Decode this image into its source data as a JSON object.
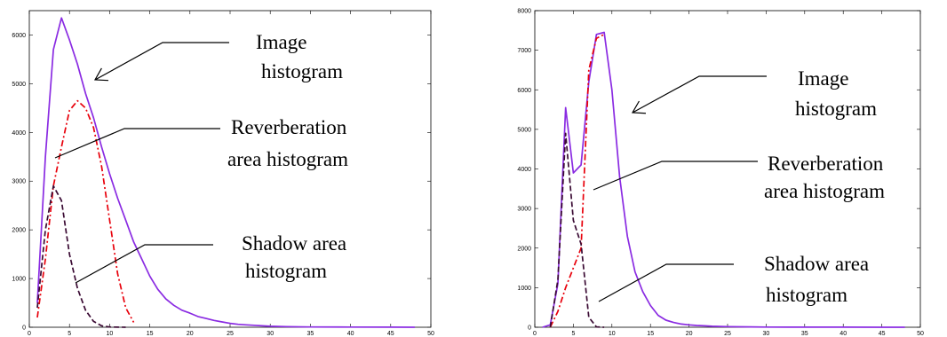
{
  "chart_data": [
    {
      "type": "line",
      "title": "",
      "xlabel": "",
      "ylabel": "",
      "xlim": [
        0,
        50
      ],
      "ylim": [
        0,
        6500
      ],
      "xticks": [
        "0",
        "5",
        "10",
        "15",
        "20",
        "25",
        "30",
        "35",
        "40",
        "45",
        "50"
      ],
      "yticks": [
        "0",
        "1000",
        "2000",
        "3000",
        "4000",
        "5000",
        "6000"
      ],
      "series": [
        {
          "color": "#8a2be2",
          "style": "solid",
          "x": [
            1,
            2,
            3,
            4,
            5,
            6,
            7,
            8,
            9,
            10,
            11,
            12,
            13,
            14,
            15,
            16,
            17,
            18,
            19,
            20,
            21,
            22,
            23,
            24,
            25,
            26,
            27,
            28,
            29,
            30,
            32,
            35,
            40,
            45,
            48
          ],
          "y": [
            500,
            3500,
            5700,
            6350,
            5900,
            5400,
            4800,
            4300,
            3700,
            3150,
            2650,
            2200,
            1750,
            1400,
            1050,
            780,
            580,
            450,
            350,
            290,
            220,
            180,
            140,
            110,
            80,
            60,
            50,
            40,
            30,
            20,
            12,
            6,
            3,
            1,
            0
          ]
        },
        {
          "color": "#e8000b",
          "style": "dashdot",
          "x": [
            1,
            2,
            3,
            4,
            5,
            6,
            7,
            8,
            9,
            10,
            11,
            12,
            13
          ],
          "y": [
            200,
            1400,
            2900,
            3700,
            4450,
            4650,
            4500,
            4100,
            3300,
            2200,
            1100,
            400,
            100
          ]
        },
        {
          "color": "#3a0a33",
          "style": "dashed",
          "x": [
            1,
            2,
            3,
            4,
            5,
            6,
            7,
            8,
            9,
            10,
            11,
            12
          ],
          "y": [
            400,
            2000,
            2900,
            2600,
            1500,
            800,
            350,
            120,
            30,
            5,
            2,
            0
          ]
        }
      ],
      "annotations": [
        {
          "lines": [
            "Image",
            "histogram"
          ]
        },
        {
          "lines": [
            "Reverberation",
            "area histogram"
          ]
        },
        {
          "lines": [
            "Shadow area",
            "histogram"
          ]
        }
      ]
    },
    {
      "type": "line",
      "title": "",
      "xlabel": "",
      "ylabel": "",
      "xlim": [
        0,
        50
      ],
      "ylim": [
        0,
        8000
      ],
      "xticks": [
        "0",
        "5",
        "10",
        "15",
        "20",
        "25",
        "30",
        "35",
        "40",
        "45",
        "50"
      ],
      "yticks": [
        "0",
        "1000",
        "2000",
        "3000",
        "4000",
        "5000",
        "6000",
        "7000",
        "8000"
      ],
      "series": [
        {
          "color": "#8a2be2",
          "style": "solid",
          "x": [
            1,
            2,
            3,
            4,
            5,
            6,
            7,
            8,
            9,
            10,
            11,
            12,
            13,
            14,
            15,
            16,
            17,
            18,
            19,
            20,
            21,
            22,
            23,
            25,
            28,
            30,
            35,
            40,
            45,
            48
          ],
          "y": [
            0,
            60,
            1100,
            5550,
            3900,
            4100,
            6200,
            7400,
            7450,
            6000,
            3800,
            2300,
            1400,
            900,
            550,
            300,
            180,
            120,
            80,
            60,
            45,
            35,
            25,
            15,
            10,
            5,
            3,
            2,
            1,
            0
          ]
        },
        {
          "color": "#e8000b",
          "style": "dashdot",
          "x": [
            2,
            3,
            4,
            5,
            6,
            7,
            8,
            9
          ],
          "y": [
            0,
            400,
            1000,
            1500,
            2000,
            6500,
            7300,
            7400
          ]
        },
        {
          "color": "#3a0a33",
          "style": "dashed",
          "x": [
            2,
            3,
            4,
            5,
            6,
            7,
            8,
            9
          ],
          "y": [
            0,
            1200,
            4900,
            2700,
            2100,
            250,
            10,
            0
          ]
        }
      ],
      "annotations": [
        {
          "lines": [
            "Image",
            "histogram"
          ]
        },
        {
          "lines": [
            "Reverberation",
            "area histogram"
          ]
        },
        {
          "lines": [
            "Shadow area",
            "histogram"
          ]
        }
      ]
    }
  ]
}
